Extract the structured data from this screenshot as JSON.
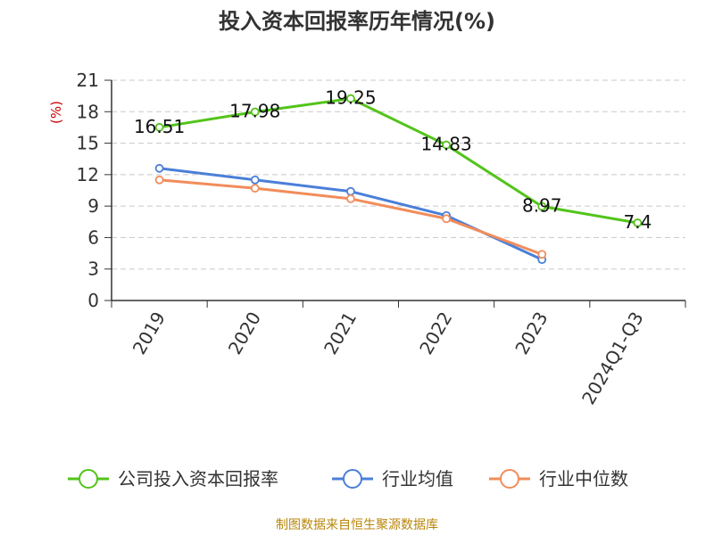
{
  "chart_data": {
    "type": "line",
    "title": "投入资本回报率历年情况(%)",
    "ylabel": "(%)",
    "xlabel": "",
    "categories": [
      "2019",
      "2020",
      "2021",
      "2022",
      "2023",
      "2024Q1-Q3"
    ],
    "ylim": [
      0,
      21
    ],
    "yticks": [
      0,
      3,
      6,
      9,
      12,
      15,
      18,
      21
    ],
    "grid": true,
    "legend_position": "bottom",
    "series": [
      {
        "name": "公司投入资本回报率",
        "color": "#52c41a",
        "values": [
          16.51,
          17.98,
          19.25,
          14.83,
          8.97,
          7.4
        ],
        "labels": [
          "16.51",
          "17.98",
          "19.25",
          "14.83",
          "8.97",
          "7.4"
        ]
      },
      {
        "name": "行业均值",
        "color": "#4a7fd8",
        "values": [
          12.6,
          11.5,
          10.4,
          8.1,
          3.9,
          null
        ]
      },
      {
        "name": "行业中位数",
        "color": "#f28c5a",
        "values": [
          11.5,
          10.7,
          9.7,
          7.8,
          4.4,
          null
        ]
      }
    ]
  },
  "source": "制图数据来自恒生聚源数据库"
}
